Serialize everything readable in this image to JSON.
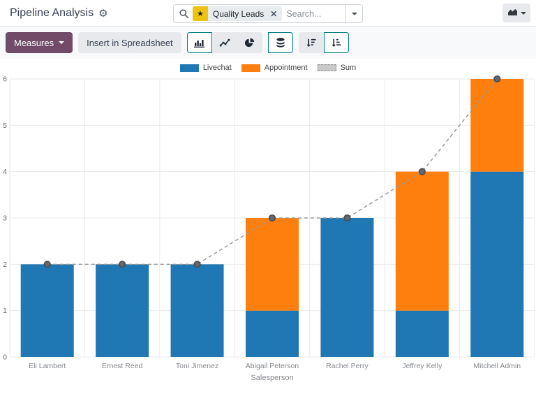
{
  "header": {
    "title": "Pipeline Analysis",
    "search": {
      "facet_label": "Quality Leads",
      "placeholder": "Search..."
    }
  },
  "toolbar": {
    "measures_label": "Measures",
    "insert_spreadsheet_label": "Insert in Spreadsheet",
    "icons": [
      "bar-chart",
      "line-chart",
      "pie-chart",
      "stacked",
      "sort-descending",
      "sort-ascending"
    ],
    "state": {
      "chart_type": "bar",
      "stacked": true,
      "order": "asc"
    }
  },
  "colors": {
    "accent_teal": "#017e84",
    "brand_purple": "#714B67",
    "livechat_blue": "#1f77b4",
    "appointment_orange": "#ff7f0e",
    "sum_gray": "#9a9a9a",
    "facet_star_yellow": "#edc211"
  },
  "chart_data": {
    "type": "bar",
    "stacked": true,
    "title": "",
    "xlabel": "Salesperson",
    "ylabel": "",
    "ylim": [
      0,
      6
    ],
    "yticks": [
      0,
      1,
      2,
      3,
      4,
      5,
      6
    ],
    "grid": true,
    "legend_position": "top",
    "categories": [
      "Eli Lambert",
      "Ernest Reed",
      "Toni Jimenez",
      "Abigail Peterson",
      "Rachel Perry",
      "Jeffrey Kelly",
      "Mitchell Admin"
    ],
    "series": [
      {
        "name": "Livechat",
        "color": "#1f77b4",
        "values": [
          2,
          2,
          2,
          1,
          3,
          1,
          4
        ]
      },
      {
        "name": "Appointment",
        "color": "#ff7f0e",
        "values": [
          0,
          0,
          0,
          2,
          0,
          3,
          2
        ]
      },
      {
        "name": "Sum",
        "line": true,
        "color": "#9a9a9a",
        "values": [
          2,
          2,
          2,
          3,
          3,
          4,
          6
        ]
      }
    ]
  }
}
